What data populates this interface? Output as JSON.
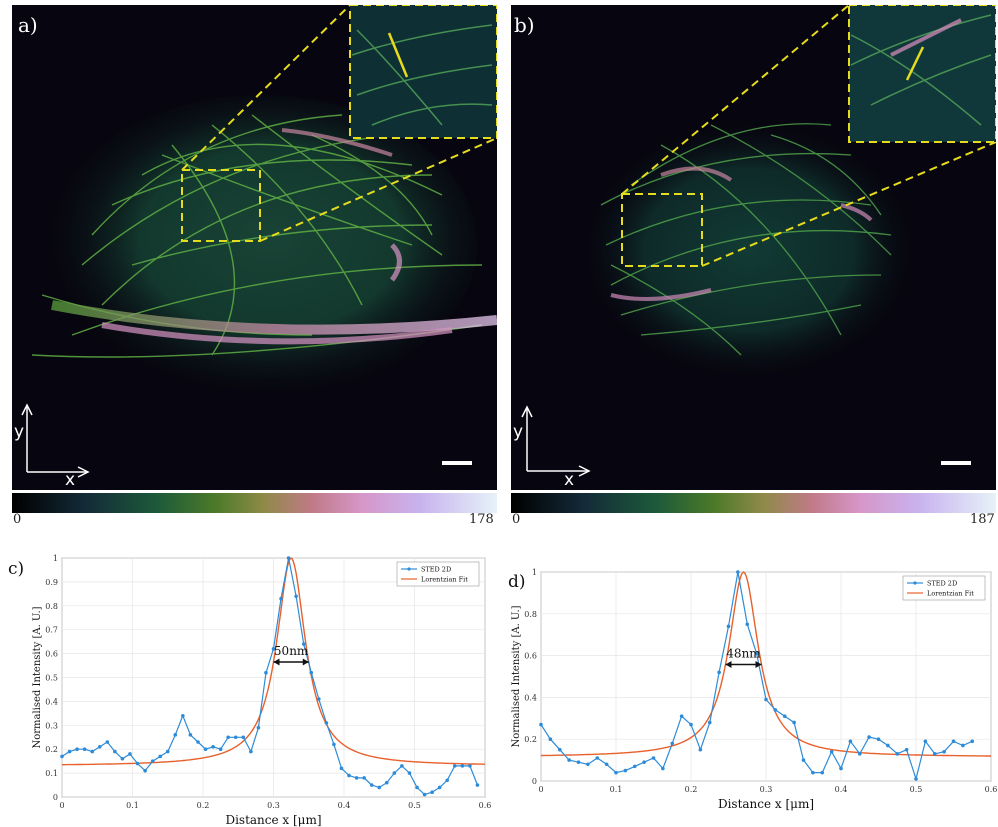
{
  "panels": {
    "a": {
      "letter": "a)",
      "axis_y": "y",
      "axis_x": "x",
      "colorbar_min": "0",
      "colorbar_max": "178"
    },
    "b": {
      "letter": "b)",
      "axis_y": "y",
      "axis_x": "x",
      "colorbar_min": "0",
      "colorbar_max": "187"
    }
  },
  "colors": {
    "sted": "#2e8bd8",
    "fit": "#e8602c",
    "inset_box": "#e6dc1e",
    "annotation": "#111111"
  },
  "chart_data": [
    {
      "panel": "c)",
      "type": "line",
      "xlabel": "Distance x [μm]",
      "ylabel": "Normalised Intensity [A. U.]",
      "xlim": [
        0,
        0.6
      ],
      "ylim": [
        0,
        1
      ],
      "xticks": [
        "0",
        "0.1",
        "0.2",
        "0.3",
        "0.4",
        "0.5",
        "0.6"
      ],
      "yticks": [
        "0",
        "0.1",
        "0.2",
        "0.3",
        "0.4",
        "0.5",
        "0.6",
        "0.7",
        "0.8",
        "0.9",
        "1"
      ],
      "grid": true,
      "legend_position": "top-right",
      "annotation": "50nm",
      "fwhm_range": [
        0.3,
        0.35
      ],
      "series": [
        {
          "name": "STED 2D",
          "style": "line-markers",
          "x": [
            0,
            0.0107,
            0.0214,
            0.0321,
            0.0429,
            0.0536,
            0.0643,
            0.075,
            0.0857,
            0.0964,
            0.1071,
            0.1179,
            0.1286,
            0.1393,
            0.15,
            0.1607,
            0.1714,
            0.1821,
            0.1929,
            0.2036,
            0.2143,
            0.225,
            0.2357,
            0.2464,
            0.2571,
            0.2679,
            0.2786,
            0.2893,
            0.3,
            0.3107,
            0.3214,
            0.3321,
            0.3429,
            0.3536,
            0.3643,
            0.375,
            0.3857,
            0.3964,
            0.4071,
            0.4179,
            0.4286,
            0.4393,
            0.45,
            0.4607,
            0.4714,
            0.4821,
            0.4929,
            0.5036,
            0.5143,
            0.525,
            0.5357,
            0.5464,
            0.5571,
            0.5679,
            0.5786,
            0.5893
          ],
          "y": [
            0.17,
            0.19,
            0.2,
            0.2,
            0.19,
            0.21,
            0.23,
            0.19,
            0.16,
            0.18,
            0.14,
            0.11,
            0.15,
            0.17,
            0.19,
            0.26,
            0.34,
            0.26,
            0.23,
            0.2,
            0.21,
            0.2,
            0.25,
            0.25,
            0.25,
            0.19,
            0.29,
            0.52,
            0.62,
            0.83,
            1.0,
            0.84,
            0.64,
            0.52,
            0.41,
            0.31,
            0.22,
            0.12,
            0.09,
            0.08,
            0.08,
            0.05,
            0.04,
            0.06,
            0.1,
            0.13,
            0.1,
            0.04,
            0.01,
            0.02,
            0.04,
            0.07,
            0.13,
            0.13,
            0.13,
            0.05
          ]
        },
        {
          "name": "Lorentzian Fit",
          "style": "line",
          "peak_x": 0.325,
          "width": 0.025,
          "amplitude": 0.87,
          "offset": 0.13
        }
      ]
    },
    {
      "panel": "d)",
      "type": "line",
      "xlabel": "Distance x [μm]",
      "ylabel": "Normalised Intensity [A. U.]",
      "xlim": [
        0,
        0.6
      ],
      "ylim": [
        0,
        1
      ],
      "xticks": [
        "0",
        "0.1",
        "0.2",
        "0.3",
        "0.4",
        "0.5",
        "0.6"
      ],
      "yticks": [
        "0",
        "0.2",
        "0.4",
        "0.6",
        "0.8",
        "1"
      ],
      "grid": true,
      "legend_position": "top-right",
      "annotation": "48nm",
      "fwhm_range": [
        0.246,
        0.294
      ],
      "series": [
        {
          "name": "STED 2D",
          "style": "line-markers",
          "x": [
            0,
            0.0125,
            0.025,
            0.0375,
            0.05,
            0.0625,
            0.075,
            0.0875,
            0.1,
            0.1125,
            0.125,
            0.1375,
            0.15,
            0.1625,
            0.175,
            0.1875,
            0.2,
            0.2125,
            0.225,
            0.2375,
            0.25,
            0.2625,
            0.275,
            0.2875,
            0.3,
            0.3125,
            0.325,
            0.3375,
            0.35,
            0.3625,
            0.375,
            0.3875,
            0.4,
            0.4125,
            0.425,
            0.4375,
            0.45,
            0.4625,
            0.475,
            0.4875,
            0.5,
            0.5125,
            0.525,
            0.5375,
            0.55,
            0.5625,
            0.575
          ],
          "y": [
            0.27,
            0.2,
            0.15,
            0.1,
            0.09,
            0.08,
            0.11,
            0.08,
            0.04,
            0.05,
            0.07,
            0.09,
            0.11,
            0.06,
            0.18,
            0.31,
            0.27,
            0.15,
            0.28,
            0.52,
            0.74,
            1.0,
            0.75,
            0.61,
            0.39,
            0.34,
            0.31,
            0.28,
            0.1,
            0.04,
            0.04,
            0.14,
            0.06,
            0.19,
            0.13,
            0.21,
            0.2,
            0.17,
            0.13,
            0.15,
            0.01,
            0.19,
            0.13,
            0.14,
            0.19,
            0.17,
            0.19
          ]
        },
        {
          "name": "Lorentzian Fit",
          "style": "line",
          "peak_x": 0.27,
          "width": 0.024,
          "amplitude": 0.885,
          "offset": 0.115
        }
      ]
    }
  ]
}
